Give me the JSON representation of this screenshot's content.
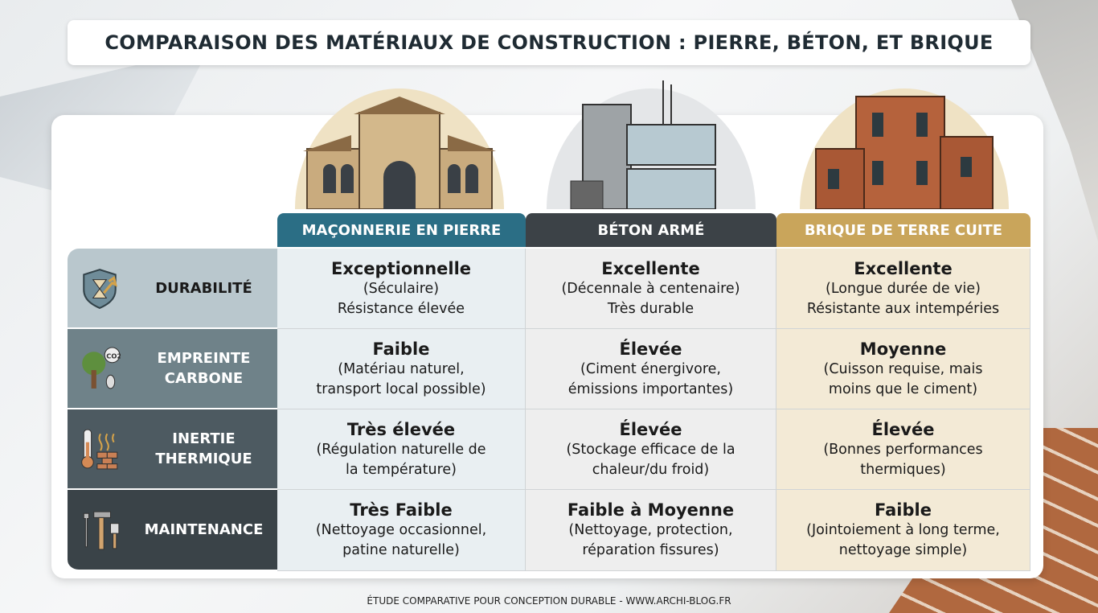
{
  "title": "COMPARAISON DES MATÉRIAUX DE CONSTRUCTION : PIERRE, BÉTON, ET BRIQUE",
  "columns": [
    {
      "label": "MAÇONNERIE EN PIERRE",
      "color": "#2b6e85",
      "cell_bg": "#e9eff2"
    },
    {
      "label": "BÉTON ARMÉ",
      "color": "#3c4247",
      "cell_bg": "#eeeeee"
    },
    {
      "label": "BRIQUE DE TERRE CUITE",
      "color": "#c9a55b",
      "cell_bg": "#f3ead6"
    }
  ],
  "rows": [
    {
      "label": "DURABILITÉ",
      "icon": "shield-hourglass-icon",
      "bg": "#b9c7cd",
      "fg": "#1a1a1a",
      "cells": [
        {
          "title": "Exceptionnelle",
          "l1": "(Séculaire)",
          "l2": "Résistance élevée"
        },
        {
          "title": "Excellente",
          "l1": "(Décennale à centenaire)",
          "l2": "Très durable"
        },
        {
          "title": "Excellente",
          "l1": "(Longue durée de vie)",
          "l2": "Résistante aux intempéries"
        }
      ]
    },
    {
      "label": "EMPREINTE CARBONE",
      "icon": "tree-co2-icon",
      "bg": "#6f8289",
      "fg": "#ffffff",
      "cells": [
        {
          "title": "Faible",
          "l1": "(Matériau naturel,",
          "l2": "transport local possible)"
        },
        {
          "title": "Élevée",
          "l1": "(Ciment énergivore,",
          "l2": "émissions importantes)"
        },
        {
          "title": "Moyenne",
          "l1": "(Cuisson requise, mais",
          "l2": "moins que le ciment)"
        }
      ]
    },
    {
      "label": "INERTIE THERMIQUE",
      "icon": "thermometer-brick-icon",
      "bg": "#4d5a61",
      "fg": "#ffffff",
      "cells": [
        {
          "title": "Très élevée",
          "l1": "(Régulation naturelle de",
          "l2": "la température)"
        },
        {
          "title": "Élevée",
          "l1": "(Stockage efficace de la",
          "l2": "chaleur/du froid)"
        },
        {
          "title": "Élevée",
          "l1": "(Bonnes performances",
          "l2": "thermiques)"
        }
      ]
    },
    {
      "label": "MAINTENANCE",
      "icon": "tools-icon",
      "bg": "#3a4348",
      "fg": "#ffffff",
      "cells": [
        {
          "title": "Très Faible",
          "l1": "(Nettoyage occasionnel,",
          "l2": "patine naturelle)"
        },
        {
          "title": "Faible à Moyenne",
          "l1": "(Nettoyage, protection,",
          "l2": "réparation fissures)"
        },
        {
          "title": "Faible",
          "l1": "(Jointoiement à long terme,",
          "l2": "nettoyage simple)"
        }
      ]
    }
  ],
  "footer": "ÉTUDE COMPARATIVE POUR CONCEPTION DURABLE - WWW.ARCHI-BLOG.FR"
}
